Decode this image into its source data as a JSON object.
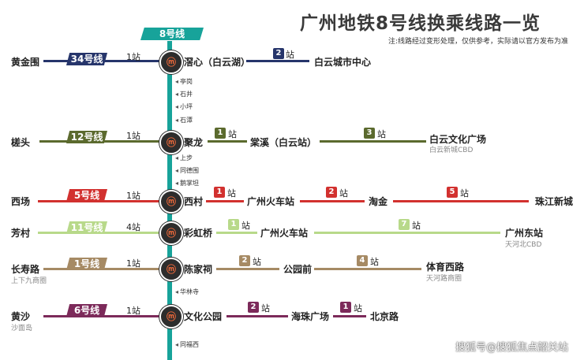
{
  "title": "广州地铁8号线换乘线路一览",
  "note": "注:线路经过变形处理，仅供参考，实际请以官方发布为准",
  "main_line": {
    "label": "8号线",
    "color": "#17a39a"
  },
  "zhan": "站",
  "transfers": [
    {
      "left_station": "黄金围",
      "left_sub": "",
      "line": "34号线",
      "line_color": "#26356b",
      "count": "1站",
      "station": "滘心（白云湖）",
      "right": [
        {
          "n": "2",
          "color": "#26356b"
        }
      ],
      "right_stations": [
        "白云城市中心"
      ],
      "right_subs": [
        ""
      ]
    },
    {
      "left_station": "槎头",
      "left_sub": "",
      "line": "12号线",
      "line_color": "#5b6a2e",
      "count": "1站",
      "station": "聚龙",
      "right": [
        {
          "n": "1",
          "color": "#5b6a2e"
        },
        {
          "n": "3",
          "color": "#5b6a2e"
        }
      ],
      "right_stations": [
        "棠溪（白云站）",
        "白云文化广场"
      ],
      "right_subs": [
        "",
        "白云新城CBD"
      ]
    },
    {
      "left_station": "西场",
      "left_sub": "",
      "line": "5号线",
      "line_color": "#d2312f",
      "count": "1站",
      "station": "西村",
      "right": [
        {
          "n": "1",
          "color": "#d2312f"
        },
        {
          "n": "2",
          "color": "#d2312f"
        },
        {
          "n": "5",
          "color": "#d2312f"
        }
      ],
      "right_stations": [
        "广州火车站",
        "淘金",
        "珠江新城"
      ],
      "right_subs": [
        "",
        "",
        ""
      ]
    },
    {
      "left_station": "芳村",
      "left_sub": "",
      "line": "11号线",
      "line_color": "#b8d98a",
      "count": "4站",
      "station": "彩虹桥",
      "right": [
        {
          "n": "1",
          "color": "#b8d98a"
        },
        {
          "n": "7",
          "color": "#b8d98a"
        }
      ],
      "right_stations": [
        "广州火车站",
        "广州东站"
      ],
      "right_subs": [
        "",
        "天河北CBD"
      ]
    },
    {
      "left_station": "长寿路",
      "left_sub": "上下九商圈",
      "line": "1号线",
      "line_color": "#a68a64",
      "count": "1站",
      "station": "陈家祠",
      "right": [
        {
          "n": "2",
          "color": "#a68a64"
        },
        {
          "n": "4",
          "color": "#a68a64"
        }
      ],
      "right_stations": [
        "公园前",
        "体育西路"
      ],
      "right_subs": [
        "",
        "天河路商圈"
      ]
    },
    {
      "left_station": "黄沙",
      "left_sub": "沙面岛",
      "line": "6号线",
      "line_color": "#7c2a5a",
      "count": "1站",
      "station": "文化公园",
      "right": [
        {
          "n": "2",
          "color": "#7c2a5a"
        },
        {
          "n": "1",
          "color": "#7c2a5a"
        }
      ],
      "right_stations": [
        "海珠广场",
        "北京路"
      ],
      "right_subs": [
        "",
        ""
      ]
    }
  ],
  "small_stations": [
    "亭岗",
    "石井",
    "小坪",
    "石潭",
    "上步",
    "同德围",
    "鹅掌坦",
    "华林寺",
    "同福西"
  ],
  "watermark": "搜狐号@搜狐焦点韶关站"
}
